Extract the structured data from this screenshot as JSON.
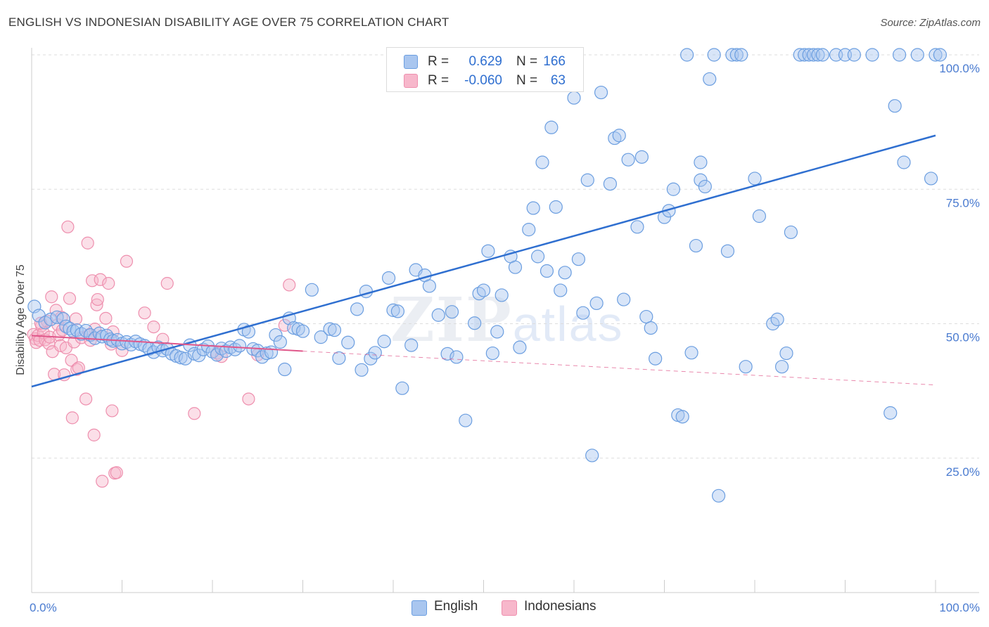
{
  "header": {
    "title": "ENGLISH VS INDONESIAN DISABILITY AGE OVER 75 CORRELATION CHART",
    "source": "Source: ZipAtlas.com"
  },
  "watermark": {
    "zip": "ZIP",
    "atlas": "atlas"
  },
  "legend": {
    "english": {
      "r_label": "R =",
      "r_value": "0.629",
      "n_label": "N =",
      "n_value": "166"
    },
    "indonesians": {
      "r_label": "R =",
      "r_value": "-0.060",
      "n_label": "N =",
      "n_value": "63"
    }
  },
  "bottom_legend": {
    "english": "English",
    "indonesians": "Indonesians"
  },
  "colors": {
    "english_fill": "#a9c6ef",
    "english_stroke": "#6b9ee0",
    "english_line": "#2f6fd0",
    "indonesian_fill": "#f7b7cb",
    "indonesian_stroke": "#ee8fae",
    "indonesian_line": "#e0578a",
    "grid": "#dddddd",
    "tick_text": "#4a7bd0"
  },
  "chart_data": {
    "type": "scatter",
    "title": "ENGLISH VS INDONESIAN DISABILITY AGE OVER 75 CORRELATION CHART",
    "xlabel": "",
    "ylabel": "Disability Age Over 75",
    "xlim": [
      0,
      100
    ],
    "ylim": [
      0,
      100
    ],
    "x_tick_labels": [
      "0.0%",
      "100.0%"
    ],
    "y_ticks": [
      {
        "value": 25,
        "label": "25.0%"
      },
      {
        "value": 50,
        "label": "50.0%"
      },
      {
        "value": 75,
        "label": "75.0%"
      },
      {
        "value": 100,
        "label": "100.0%"
      }
    ],
    "grid": true,
    "legend_position": "top-center",
    "series": [
      {
        "name": "English",
        "r": 0.629,
        "n": 166,
        "trend": {
          "x": [
            0,
            100
          ],
          "y": [
            38.3,
            85.0
          ],
          "style": "solid"
        },
        "points": [
          [
            0.3,
            53.2
          ],
          [
            0.8,
            51.5
          ],
          [
            1.5,
            50.2
          ],
          [
            2.1,
            50.8
          ],
          [
            2.8,
            51.2
          ],
          [
            3.5,
            50.9
          ],
          [
            3.8,
            49.5
          ],
          [
            4.2,
            49.1
          ],
          [
            4.6,
            48.6
          ],
          [
            5.0,
            48.8
          ],
          [
            5.5,
            48.1
          ],
          [
            6.0,
            48.7
          ],
          [
            6.5,
            47.9
          ],
          [
            7.0,
            47.3
          ],
          [
            7.5,
            48.2
          ],
          [
            7.8,
            47.6
          ],
          [
            8.3,
            47.8
          ],
          [
            8.7,
            47.1
          ],
          [
            9.0,
            46.8
          ],
          [
            9.5,
            47.0
          ],
          [
            10.0,
            46.3
          ],
          [
            10.5,
            46.6
          ],
          [
            11.0,
            46.1
          ],
          [
            11.5,
            46.7
          ],
          [
            12.0,
            46.2
          ],
          [
            12.5,
            45.9
          ],
          [
            13.0,
            45.3
          ],
          [
            13.5,
            44.7
          ],
          [
            14.0,
            45.6
          ],
          [
            14.5,
            45.0
          ],
          [
            15.0,
            45.3
          ],
          [
            15.5,
            44.4
          ],
          [
            16.0,
            44.0
          ],
          [
            16.5,
            43.7
          ],
          [
            17.0,
            43.5
          ],
          [
            17.5,
            46.0
          ],
          [
            18.0,
            44.4
          ],
          [
            18.5,
            44.1
          ],
          [
            19.0,
            45.2
          ],
          [
            19.5,
            45.8
          ],
          [
            20.0,
            44.8
          ],
          [
            20.5,
            44.2
          ],
          [
            21.0,
            45.4
          ],
          [
            21.5,
            44.9
          ],
          [
            22.0,
            45.6
          ],
          [
            22.5,
            45.2
          ],
          [
            23.0,
            45.9
          ],
          [
            23.5,
            48.9
          ],
          [
            24.0,
            48.5
          ],
          [
            24.5,
            45.3
          ],
          [
            25.0,
            45.0
          ],
          [
            25.5,
            43.8
          ],
          [
            26.0,
            44.5
          ],
          [
            26.5,
            44.7
          ],
          [
            27.0,
            47.9
          ],
          [
            27.5,
            46.6
          ],
          [
            28.0,
            41.5
          ],
          [
            28.5,
            51.0
          ],
          [
            29.0,
            49.2
          ],
          [
            29.5,
            49.0
          ],
          [
            30.0,
            48.6
          ],
          [
            31.0,
            56.3
          ],
          [
            32.0,
            47.5
          ],
          [
            33.0,
            49.0
          ],
          [
            33.5,
            48.8
          ],
          [
            34.0,
            43.6
          ],
          [
            35.0,
            46.5
          ],
          [
            36.0,
            52.7
          ],
          [
            36.5,
            41.4
          ],
          [
            37.0,
            56.0
          ],
          [
            37.5,
            43.5
          ],
          [
            38.0,
            44.6
          ],
          [
            39.0,
            46.7
          ],
          [
            39.5,
            58.5
          ],
          [
            40.0,
            52.5
          ],
          [
            40.5,
            52.3
          ],
          [
            41.0,
            38.0
          ],
          [
            42.0,
            46.0
          ],
          [
            42.5,
            60.0
          ],
          [
            43.5,
            59.0
          ],
          [
            44.0,
            57.0
          ],
          [
            45.0,
            51.6
          ],
          [
            46.0,
            44.4
          ],
          [
            46.5,
            52.2
          ],
          [
            47.0,
            43.8
          ],
          [
            48.0,
            32.0
          ],
          [
            49.0,
            50.1
          ],
          [
            49.5,
            55.6
          ],
          [
            50.0,
            56.2
          ],
          [
            50.5,
            63.5
          ],
          [
            51.0,
            44.5
          ],
          [
            51.5,
            48.5
          ],
          [
            52.0,
            55.3
          ],
          [
            53.0,
            62.5
          ],
          [
            53.5,
            60.5
          ],
          [
            54.0,
            45.6
          ],
          [
            55.0,
            67.5
          ],
          [
            55.5,
            71.5
          ],
          [
            56.0,
            62.5
          ],
          [
            56.5,
            80.0
          ],
          [
            57.0,
            59.8
          ],
          [
            57.5,
            86.5
          ],
          [
            58.0,
            71.7
          ],
          [
            58.5,
            56.2
          ],
          [
            59.0,
            59.5
          ],
          [
            60.0,
            92.0
          ],
          [
            60.5,
            62.0
          ],
          [
            61.0,
            52.0
          ],
          [
            61.5,
            76.7
          ],
          [
            62.0,
            25.5
          ],
          [
            62.5,
            53.8
          ],
          [
            63.0,
            93.0
          ],
          [
            64.0,
            76.0
          ],
          [
            64.5,
            84.5
          ],
          [
            65.0,
            85.0
          ],
          [
            65.5,
            54.5
          ],
          [
            66.0,
            80.5
          ],
          [
            67.0,
            68.0
          ],
          [
            67.5,
            81.0
          ],
          [
            68.0,
            51.3
          ],
          [
            68.5,
            49.2
          ],
          [
            69.0,
            43.5
          ],
          [
            70.0,
            69.8
          ],
          [
            70.5,
            71.0
          ],
          [
            71.0,
            75.0
          ],
          [
            71.5,
            33.0
          ],
          [
            72.0,
            32.7
          ],
          [
            72.5,
            100.0
          ],
          [
            73.0,
            44.6
          ],
          [
            74.0,
            76.7
          ],
          [
            74.5,
            75.5
          ],
          [
            75.0,
            95.5
          ],
          [
            75.5,
            100.0
          ],
          [
            76.0,
            18.0
          ],
          [
            77.0,
            63.5
          ],
          [
            77.5,
            100.0
          ],
          [
            78.0,
            100.0
          ],
          [
            78.5,
            100.0
          ],
          [
            79.0,
            42.0
          ],
          [
            80.0,
            77.0
          ],
          [
            80.5,
            70.0
          ],
          [
            82.0,
            50.0
          ],
          [
            82.5,
            50.8
          ],
          [
            83.0,
            42.0
          ],
          [
            83.5,
            44.5
          ],
          [
            84.0,
            67.0
          ],
          [
            85.0,
            100.0
          ],
          [
            85.5,
            100.0
          ],
          [
            86.0,
            100.0
          ],
          [
            86.5,
            100.0
          ],
          [
            87.0,
            100.0
          ],
          [
            87.5,
            100.0
          ],
          [
            89.0,
            100.0
          ],
          [
            90.0,
            100.0
          ],
          [
            91.0,
            100.0
          ],
          [
            93.0,
            100.0
          ],
          [
            95.0,
            33.4
          ],
          [
            96.0,
            100.0
          ],
          [
            98.0,
            100.0
          ],
          [
            100.0,
            100.0
          ],
          [
            95.5,
            90.5
          ],
          [
            96.5,
            80.0
          ],
          [
            99.5,
            77.0
          ],
          [
            74.0,
            80.0
          ],
          [
            73.5,
            64.5
          ],
          [
            100.5,
            100.0
          ]
        ]
      },
      {
        "name": "Indonesians",
        "r": -0.06,
        "n": 63,
        "trend": {
          "x": [
            0,
            30
          ],
          "y": [
            47.8,
            44.9
          ],
          "x_dashed": [
            30,
            100
          ],
          "y_dashed": [
            44.9,
            38.6
          ],
          "style": "solid-then-dashed"
        },
        "points": [
          [
            0.2,
            48.0
          ],
          [
            0.4,
            47.2
          ],
          [
            0.5,
            46.5
          ],
          [
            0.7,
            47.8
          ],
          [
            0.9,
            46.9
          ],
          [
            1.1,
            49.6
          ],
          [
            1.3,
            48.3
          ],
          [
            1.5,
            47.0
          ],
          [
            1.7,
            50.5
          ],
          [
            1.9,
            46.3
          ],
          [
            2.0,
            47.5
          ],
          [
            2.2,
            55.0
          ],
          [
            2.3,
            44.8
          ],
          [
            2.5,
            40.6
          ],
          [
            2.7,
            52.5
          ],
          [
            2.9,
            49.8
          ],
          [
            3.0,
            47.9
          ],
          [
            3.2,
            45.9
          ],
          [
            3.4,
            48.8
          ],
          [
            3.6,
            40.5
          ],
          [
            3.8,
            45.5
          ],
          [
            4.0,
            68.0
          ],
          [
            4.2,
            54.7
          ],
          [
            4.4,
            43.2
          ],
          [
            4.5,
            32.5
          ],
          [
            4.7,
            46.6
          ],
          [
            4.9,
            50.9
          ],
          [
            5.0,
            41.5
          ],
          [
            5.2,
            41.8
          ],
          [
            5.5,
            47.4
          ],
          [
            6.0,
            36.0
          ],
          [
            6.2,
            65.0
          ],
          [
            6.5,
            46.9
          ],
          [
            6.7,
            58.0
          ],
          [
            6.9,
            29.3
          ],
          [
            7.0,
            49.0
          ],
          [
            7.2,
            53.5
          ],
          [
            7.3,
            54.5
          ],
          [
            7.6,
            58.2
          ],
          [
            7.8,
            20.7
          ],
          [
            8.2,
            51.0
          ],
          [
            8.5,
            57.5
          ],
          [
            8.8,
            46.2
          ],
          [
            8.9,
            33.8
          ],
          [
            9.0,
            48.5
          ],
          [
            9.2,
            22.2
          ],
          [
            9.4,
            22.3
          ],
          [
            10.0,
            45.0
          ],
          [
            10.5,
            61.6
          ],
          [
            12.5,
            52.0
          ],
          [
            13.5,
            49.4
          ],
          [
            14.5,
            47.1
          ],
          [
            15.0,
            57.5
          ],
          [
            18.0,
            33.3
          ],
          [
            20.5,
            44.5
          ],
          [
            21.0,
            43.9
          ],
          [
            24.0,
            36.0
          ],
          [
            25.0,
            44.2
          ],
          [
            28.5,
            57.2
          ],
          [
            28.0,
            49.7
          ],
          [
            3.3,
            51.2
          ],
          [
            1.0,
            50.1
          ],
          [
            6.4,
            48.0
          ]
        ]
      }
    ]
  }
}
